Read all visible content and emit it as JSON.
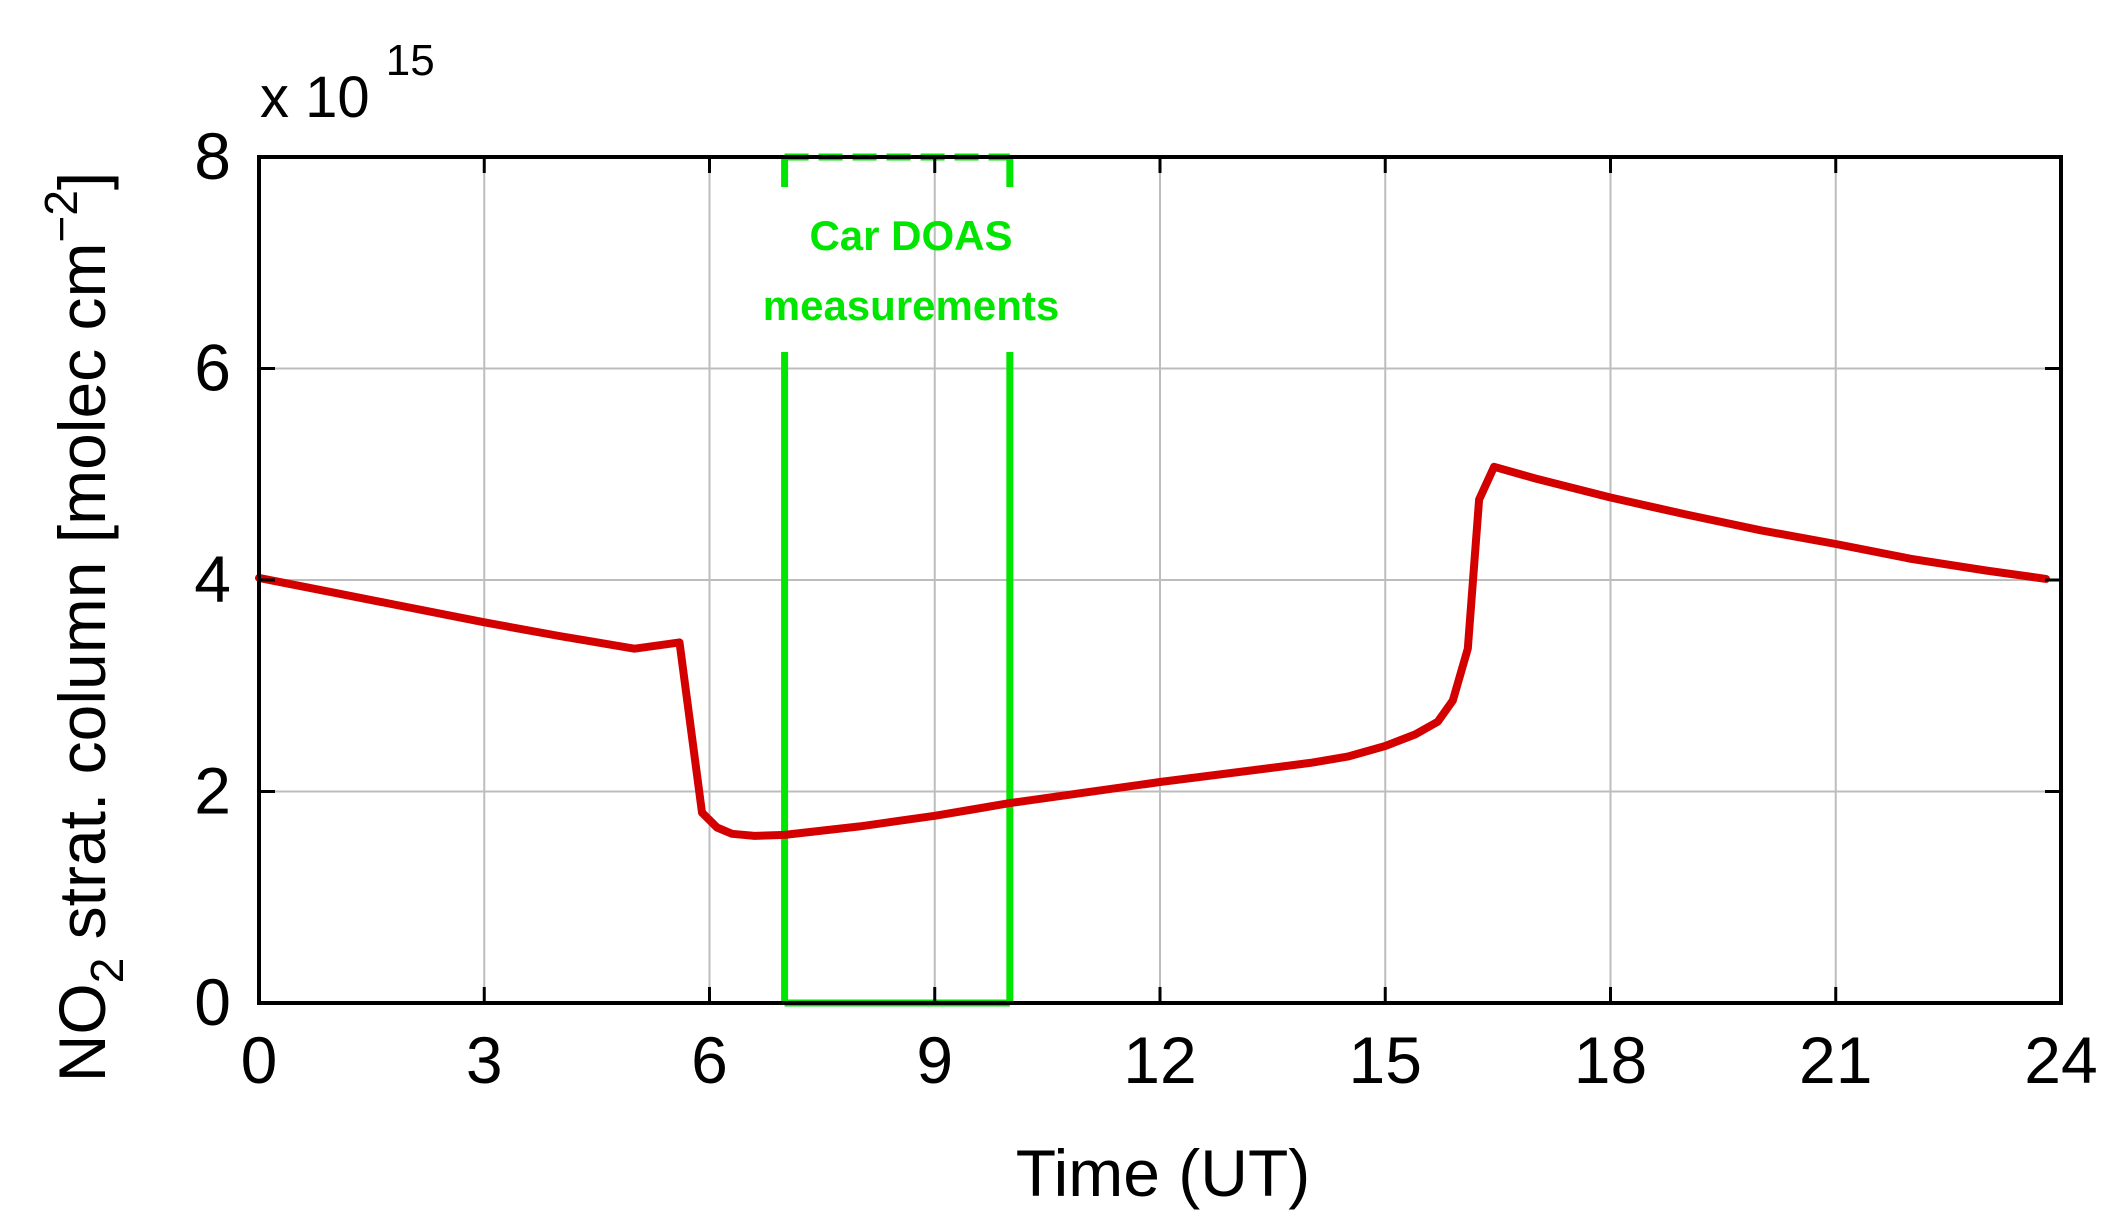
{
  "chart_data": {
    "type": "line",
    "title": "",
    "xlabel": "Time (UT)",
    "ylabel": {
      "main": "NO",
      "subscript": "2",
      "rest": " strat. column [molec cm",
      "superscript": "−2",
      "close": "]"
    },
    "xlim": [
      0,
      24
    ],
    "ylim": [
      0,
      8
    ],
    "xticks": [
      0,
      3,
      6,
      9,
      12,
      15,
      18,
      21,
      24
    ],
    "yticks": [
      0,
      2,
      4,
      6,
      8
    ],
    "grid": true,
    "y_multiplier": {
      "base": "x 10",
      "exponent": "15"
    },
    "series": [
      {
        "color": "#d40000",
        "x": [
          0,
          1,
          2,
          3,
          4,
          5,
          5.6,
          5.9,
          6.1,
          6.3,
          6.6,
          7,
          7.5,
          8,
          8.5,
          9,
          9.5,
          10,
          11,
          12,
          13,
          14,
          14.5,
          15,
          15.4,
          15.7,
          15.9,
          16.1,
          16.25,
          16.45,
          17,
          18,
          19,
          20,
          21,
          22,
          23,
          23.8
        ],
        "y": [
          4.02,
          3.88,
          3.74,
          3.6,
          3.47,
          3.35,
          3.41,
          1.8,
          1.66,
          1.6,
          1.58,
          1.59,
          1.63,
          1.67,
          1.72,
          1.77,
          1.83,
          1.89,
          1.99,
          2.09,
          2.18,
          2.27,
          2.33,
          2.43,
          2.54,
          2.66,
          2.86,
          3.35,
          4.76,
          5.07,
          4.96,
          4.78,
          4.62,
          4.47,
          4.34,
          4.2,
          4.09,
          4.01
        ]
      }
    ],
    "annotation": {
      "type": "rectangle",
      "color": "#00e600",
      "x_range": [
        7,
        10
      ],
      "y_range": [
        0,
        8
      ],
      "lines": [
        "Car DOAS",
        "measurements"
      ]
    }
  }
}
